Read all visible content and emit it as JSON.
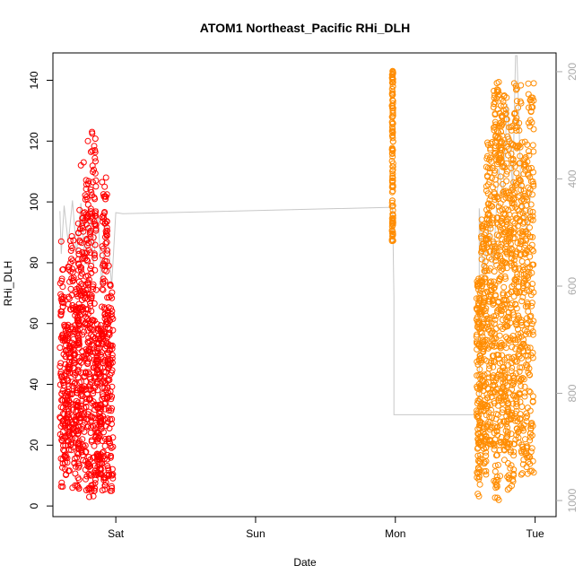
{
  "chart_data": {
    "type": "scatter",
    "title": "ATOM1 Northeast_Pacific RHi_DLH",
    "xlabel": "Date",
    "ylabel": "RHi_DLH",
    "x_ticks": [
      "Sat",
      "Sun",
      "Mon",
      "Tue"
    ],
    "y_ticks": [
      0,
      20,
      40,
      60,
      80,
      100,
      120,
      140
    ],
    "y2_ticks": [
      200,
      400,
      600,
      800,
      1000
    ],
    "xlim": [
      -0.45,
      3.15
    ],
    "ylim": [
      -3.5,
      149
    ],
    "y2lim": [
      1030,
      165
    ],
    "grid": false,
    "legend": "none",
    "marker": "open-circle",
    "colors": {
      "day1": "#ff0000",
      "day2": "#ff8c00",
      "pressure_line": "#c8c8c8",
      "tick_right": "#aaaaaa"
    },
    "series": [
      {
        "color": "#ff0000",
        "clusters": [
          {
            "x": [
              -0.4,
              -0.37
            ],
            "y": [
              6,
              78
            ],
            "n": 70
          },
          {
            "x": [
              -0.37,
              -0.33
            ],
            "y": [
              10,
              60
            ],
            "n": 90
          },
          {
            "x": [
              -0.34,
              -0.3
            ],
            "y": [
              18,
              90
            ],
            "n": 90
          },
          {
            "x": [
              -0.3,
              -0.26
            ],
            "y": [
              5,
              72
            ],
            "n": 100
          },
          {
            "x": [
              -0.27,
              -0.22
            ],
            "y": [
              15,
              100
            ],
            "n": 120
          },
          {
            "x": [
              -0.22,
              -0.18
            ],
            "y": [
              5,
              110
            ],
            "n": 130
          },
          {
            "x": [
              -0.18,
              -0.14
            ],
            "y": [
              3,
              123
            ],
            "n": 120
          },
          {
            "x": [
              -0.14,
              -0.1
            ],
            "y": [
              10,
              60
            ],
            "n": 110
          },
          {
            "x": [
              -0.1,
              -0.06
            ],
            "y": [
              5,
              108
            ],
            "n": 120
          },
          {
            "x": [
              -0.06,
              -0.02
            ],
            "y": [
              4,
              73
            ],
            "n": 100
          }
        ],
        "points": [
          {
            "x": -0.39,
            "y": 87
          },
          {
            "x": -0.25,
            "y": 112
          },
          {
            "x": -0.23,
            "y": 113
          },
          {
            "x": -0.2,
            "y": 120
          },
          {
            "x": -0.17,
            "y": 123
          },
          {
            "x": -0.15,
            "y": 117
          },
          {
            "x": -0.08,
            "y": 105
          },
          {
            "x": -0.07,
            "y": 108
          },
          {
            "x": -0.05,
            "y": 79
          },
          {
            "x": -0.19,
            "y": 3
          },
          {
            "x": -0.03,
            "y": 5
          },
          {
            "x": -0.31,
            "y": 6
          }
        ]
      },
      {
        "color": "#ff8c00",
        "clusters": [
          {
            "x": 1.98,
            "y": [
              87,
              143
            ],
            "n": 120
          },
          {
            "x": [
              2.58,
              2.61
            ],
            "y": [
              3,
              75
            ],
            "n": 120
          },
          {
            "x": [
              2.61,
              2.65
            ],
            "y": [
              10,
              95
            ],
            "n": 120
          },
          {
            "x": [
              2.65,
              2.7
            ],
            "y": [
              20,
              120
            ],
            "n": 150
          },
          {
            "x": [
              2.7,
              2.75
            ],
            "y": [
              2,
              140
            ],
            "n": 180
          },
          {
            "x": [
              2.75,
              2.8
            ],
            "y": [
              15,
              135
            ],
            "n": 180
          },
          {
            "x": [
              2.8,
              2.85
            ],
            "y": [
              5,
              125
            ],
            "n": 160
          },
          {
            "x": [
              2.85,
              2.9
            ],
            "y": [
              20,
              140
            ],
            "n": 150
          },
          {
            "x": [
              2.9,
              2.95
            ],
            "y": [
              10,
              120
            ],
            "n": 140
          },
          {
            "x": [
              2.95,
              2.99
            ],
            "y": [
              11,
              139
            ],
            "n": 110
          }
        ],
        "points": [
          {
            "x": 1.98,
            "y": 143
          },
          {
            "x": 2.78,
            "y": 135
          },
          {
            "x": 2.85,
            "y": 139
          },
          {
            "x": 2.99,
            "y": 139
          },
          {
            "x": 2.99,
            "y": 11
          },
          {
            "x": 2.59,
            "y": 4
          },
          {
            "x": 2.74,
            "y": 2
          }
        ]
      }
    ],
    "pressure_line": [
      {
        "x": -0.4,
        "y2": 460
      },
      {
        "x": -0.39,
        "y2": 540
      },
      {
        "x": -0.37,
        "y2": 450
      },
      {
        "x": -0.34,
        "y2": 520
      },
      {
        "x": -0.31,
        "y2": 440
      },
      {
        "x": -0.28,
        "y2": 540
      },
      {
        "x": -0.25,
        "y2": 445
      },
      {
        "x": -0.22,
        "y2": 560
      },
      {
        "x": -0.19,
        "y2": 450
      },
      {
        "x": -0.16,
        "y2": 560
      },
      {
        "x": -0.13,
        "y2": 455
      },
      {
        "x": -0.1,
        "y2": 600
      },
      {
        "x": -0.07,
        "y2": 460
      },
      {
        "x": -0.03,
        "y2": 600
      },
      {
        "x": 0.0,
        "y2": 463
      },
      {
        "x": 0.05,
        "y2": 465
      },
      {
        "x": 1.98,
        "y2": 453
      },
      {
        "x": 1.99,
        "y2": 620
      },
      {
        "x": 1.99,
        "y2": 840
      },
      {
        "x": 2.6,
        "y2": 840
      },
      {
        "x": 2.6,
        "y2": 455
      },
      {
        "x": 2.63,
        "y2": 580
      },
      {
        "x": 2.67,
        "y2": 470
      },
      {
        "x": 2.7,
        "y2": 560
      },
      {
        "x": 2.74,
        "y2": 380
      },
      {
        "x": 2.77,
        "y2": 430
      },
      {
        "x": 2.8,
        "y2": 260
      },
      {
        "x": 2.84,
        "y2": 420
      },
      {
        "x": 2.86,
        "y2": 170
      },
      {
        "x": 2.87,
        "y2": 170
      },
      {
        "x": 2.9,
        "y2": 430
      },
      {
        "x": 2.94,
        "y2": 500
      },
      {
        "x": 2.97,
        "y2": 420
      }
    ]
  }
}
